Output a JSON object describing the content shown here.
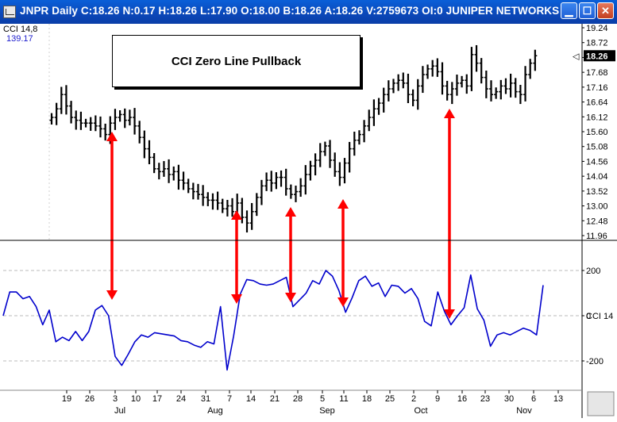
{
  "window": {
    "title": "JNPR Daily C:18.26 N:0.17 H:18.26 L:17.90 O:18.00 B:18.26 A:18.26 V:2759673 OI:0 JUNIPER NETWORKS",
    "minimize_icon": "minimize-icon",
    "maximize_icon": "maximize-icon",
    "close_icon": "close-icon"
  },
  "callout": {
    "text": "CCI Zero Line Pullback"
  },
  "indicator": {
    "name": "CCI 14,8",
    "value": "139.17",
    "axis_label": "CCI 14"
  },
  "colors": {
    "price_bars": "#000000",
    "cci_line": "#0000cc",
    "arrows": "#ff0000",
    "indicator_text": "#1a1acc",
    "last_price_box": "#000000"
  },
  "chart_data": [
    {
      "type": "ohlc",
      "title": "JNPR Daily",
      "price_axis_ticks": [
        19.24,
        18.72,
        18.2,
        17.68,
        17.16,
        16.64,
        16.12,
        15.6,
        15.08,
        14.56,
        14.04,
        13.52,
        13.0,
        12.48,
        11.96
      ],
      "last_price_label": "18.26",
      "ylim": [
        11.96,
        19.5
      ],
      "x_ticks": [
        "19",
        "26",
        "3",
        "10",
        "17",
        "24",
        "31",
        "7",
        "14",
        "21",
        "28",
        "5",
        "11",
        "18",
        "25",
        "2",
        "9",
        "16",
        "23",
        "30",
        "6",
        "13"
      ],
      "months": [
        "Jul",
        "Aug",
        "Sep",
        "Oct",
        "Nov"
      ],
      "series": [
        {
          "name": "JNPR",
          "closes": [
            16.1,
            16.4,
            16.9,
            16.5,
            16.1,
            16.0,
            15.9,
            15.9,
            15.9,
            15.8,
            15.7,
            15.5,
            15.9,
            16.1,
            16.2,
            16.0,
            16.1,
            15.8,
            15.4,
            15.0,
            14.7,
            14.3,
            14.2,
            14.3,
            14.1,
            14.2,
            13.9,
            13.8,
            13.6,
            13.5,
            13.4,
            13.3,
            13.2,
            13.2,
            13.1,
            12.9,
            13.0,
            12.8,
            13.1,
            12.6,
            12.4,
            12.8,
            13.3,
            13.7,
            13.9,
            13.8,
            14.0,
            14.0,
            13.6,
            13.4,
            13.5,
            13.7,
            14.1,
            14.4,
            14.6,
            14.9,
            15.1,
            14.6,
            14.2,
            14.0,
            14.5,
            15.0,
            15.3,
            15.5,
            15.8,
            16.1,
            16.4,
            16.6,
            16.9,
            17.1,
            17.3,
            17.4,
            17.3,
            16.9,
            16.7,
            17.2,
            17.6,
            17.8,
            17.9,
            17.7,
            17.2,
            16.9,
            17.1,
            17.3,
            17.4,
            17.2,
            18.3,
            18.0,
            17.5,
            17.1,
            16.9,
            17.0,
            17.2,
            17.1,
            17.3,
            17.0,
            16.9,
            17.6,
            18.0,
            18.26
          ]
        }
      ]
    },
    {
      "type": "line",
      "title": "CCI 14,8",
      "y_ticks": [
        200,
        0,
        -200
      ],
      "ylim": [
        -330,
        330
      ],
      "series": [
        {
          "name": "CCI 14",
          "values": [
            0,
            105,
            105,
            75,
            85,
            40,
            -40,
            25,
            -115,
            -95,
            -110,
            -70,
            -110,
            -70,
            25,
            45,
            0,
            -180,
            -220,
            -170,
            -115,
            -85,
            -95,
            -75,
            -80,
            -85,
            -90,
            -110,
            -115,
            -130,
            -140,
            -115,
            -125,
            40,
            -240,
            -90,
            95,
            160,
            155,
            140,
            135,
            140,
            155,
            170,
            40,
            70,
            100,
            155,
            140,
            200,
            175,
            110,
            15,
            80,
            155,
            175,
            130,
            145,
            85,
            135,
            130,
            100,
            120,
            75,
            -25,
            -45,
            105,
            20,
            -40,
            0,
            35,
            180,
            30,
            -20,
            -135,
            -85,
            -75,
            -85,
            -70,
            -55,
            -65,
            -85,
            135
          ],
          "zero_line_pullbacks": 5
        }
      ]
    }
  ]
}
